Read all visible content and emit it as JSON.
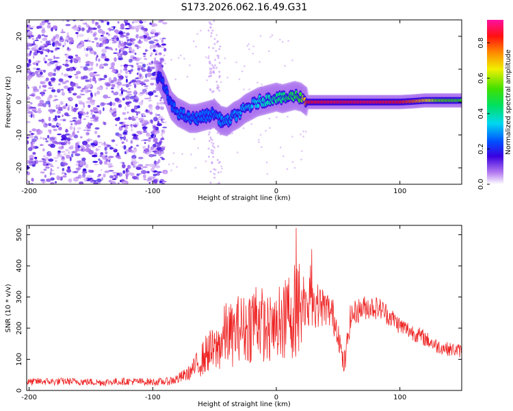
{
  "chart_data": [
    {
      "type": "heatmap",
      "title": "S173.2026.062.16.49.G31",
      "xlabel": "Height of straight line (km)",
      "ylabel": "Frequency (Hz)",
      "xlim": [
        -202,
        150
      ],
      "ylim": [
        -25,
        25
      ],
      "xticks": [
        -200,
        -100,
        0,
        100
      ],
      "xtick_labels": [
        "-200",
        "-100",
        "0",
        "100"
      ],
      "yticks": [
        -20,
        -10,
        0,
        10,
        20
      ],
      "ytick_labels": [
        "-20",
        "-10",
        "0",
        "10",
        "20"
      ],
      "colorbar": {
        "label": "Normalized spectral amplitude",
        "range": [
          0.0,
          0.93
        ],
        "ticks": [
          0.0,
          0.2,
          0.4,
          0.6,
          0.8
        ],
        "tick_labels": [
          "0.0",
          "0.2",
          "0.4",
          "0.6",
          "0.8"
        ]
      },
      "ridge": {
        "x": [
          -95,
          -90,
          -85,
          -80,
          -75,
          -70,
          -65,
          -60,
          -55,
          -50,
          -45,
          -40,
          -35,
          -30,
          -25,
          -20,
          -15,
          -10,
          -5,
          0,
          5,
          10,
          15,
          20,
          25,
          40,
          60,
          80,
          100,
          110,
          120,
          130,
          150
        ],
        "y": [
          8,
          4,
          -1,
          -3,
          -4,
          -5,
          -5,
          -4.5,
          -4,
          -3.5,
          -5.5,
          -6,
          -4.5,
          -3.5,
          -2,
          -1,
          0,
          0.5,
          1,
          1.5,
          1,
          1.5,
          2,
          1.5,
          0,
          0,
          0,
          0,
          0,
          0.2,
          0.5,
          0.5,
          0.5
        ],
        "amplitude": [
          0.2,
          0.25,
          0.25,
          0.28,
          0.28,
          0.28,
          0.28,
          0.28,
          0.28,
          0.28,
          0.3,
          0.3,
          0.3,
          0.32,
          0.35,
          0.35,
          0.38,
          0.4,
          0.42,
          0.45,
          0.45,
          0.5,
          0.5,
          0.55,
          0.9,
          0.92,
          0.92,
          0.92,
          0.9,
          0.85,
          0.75,
          0.6,
          0.55
        ]
      }
    },
    {
      "type": "line",
      "xlabel": "Height of straight line (km)",
      "ylabel": "SNR (10 * v/v)",
      "xlim": [
        -202,
        150
      ],
      "ylim": [
        0,
        530
      ],
      "xticks": [
        -200,
        -100,
        0,
        100
      ],
      "xtick_labels": [
        "-200",
        "-100",
        "0",
        "100"
      ],
      "yticks": [
        0,
        100,
        200,
        300,
        400,
        500
      ],
      "ytick_labels": [
        "0",
        "100",
        "200",
        "300",
        "400",
        "500"
      ],
      "color": "#ee2222",
      "series": [
        {
          "name": "SNR",
          "x": [
            -202,
            -190,
            -180,
            -170,
            -160,
            -150,
            -140,
            -130,
            -120,
            -110,
            -100,
            -90,
            -85,
            -80,
            -75,
            -70,
            -65,
            -60,
            -55,
            -50,
            -45,
            -40,
            -35,
            -30,
            -25,
            -20,
            -15,
            -10,
            -5,
            0,
            5,
            10,
            15,
            20,
            25,
            30,
            35,
            40,
            45,
            50,
            52,
            54,
            56,
            58,
            60,
            65,
            70,
            75,
            80,
            85,
            90,
            95,
            100,
            110,
            120,
            130,
            140,
            150
          ],
          "y": [
            25,
            28,
            27,
            28,
            27,
            26,
            25,
            27,
            28,
            27,
            26,
            27,
            30,
            35,
            45,
            55,
            75,
            95,
            120,
            115,
            145,
            175,
            165,
            195,
            185,
            205,
            230,
            190,
            180,
            185,
            200,
            230,
            245,
            255,
            275,
            270,
            265,
            260,
            240,
            190,
            130,
            80,
            95,
            170,
            230,
            250,
            260,
            265,
            262,
            258,
            240,
            225,
            205,
            185,
            165,
            140,
            130,
            125
          ],
          "spread": [
            12,
            12,
            12,
            12,
            12,
            12,
            12,
            12,
            12,
            12,
            12,
            12,
            15,
            18,
            20,
            25,
            40,
            55,
            70,
            75,
            90,
            110,
            100,
            110,
            110,
            130,
            140,
            110,
            110,
            110,
            120,
            150,
            160,
            160,
            90,
            80,
            70,
            60,
            60,
            50,
            45,
            40,
            40,
            45,
            45,
            40,
            40,
            40,
            38,
            35,
            35,
            30,
            30,
            28,
            26,
            24,
            22,
            22
          ]
        }
      ]
    }
  ]
}
